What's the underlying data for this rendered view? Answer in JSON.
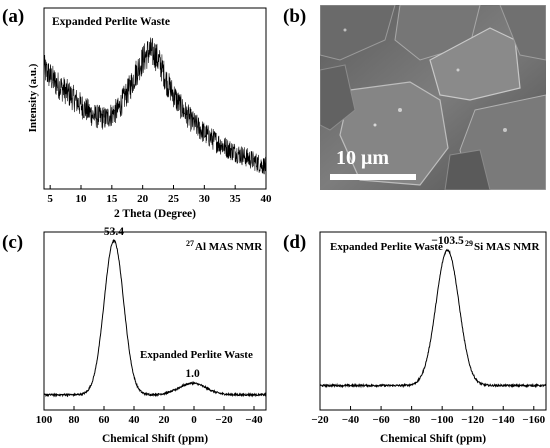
{
  "panels": {
    "a": {
      "label": "(a)"
    },
    "b": {
      "label": "(b)"
    },
    "c": {
      "label": "(c)"
    },
    "d": {
      "label": "(d)"
    }
  },
  "micrograph": {
    "scale_text": "10 μm",
    "description_colors": {
      "background": "#6f6f6f",
      "scale_bar": "#ffffff"
    }
  },
  "chart_data": [
    {
      "id": "a",
      "type": "line",
      "title": "Expanded Perlite Waste",
      "xlabel": "2 Theta (Degree)",
      "ylabel": "Intensity (a.u.)",
      "xlim": [
        4,
        40
      ],
      "xticks": [
        5,
        10,
        15,
        20,
        25,
        30,
        35,
        40
      ],
      "y_ticks_shown": false,
      "series": [
        {
          "x": [
            4,
            6,
            8,
            10,
            12,
            14,
            16,
            18,
            19,
            20,
            21,
            22,
            23,
            24,
            26,
            28,
            30,
            32,
            34,
            36,
            38,
            40
          ],
          "y": [
            0.72,
            0.62,
            0.55,
            0.47,
            0.4,
            0.38,
            0.44,
            0.6,
            0.7,
            0.78,
            0.84,
            0.82,
            0.74,
            0.62,
            0.47,
            0.36,
            0.28,
            0.22,
            0.17,
            0.13,
            0.09,
            0.05
          ],
          "noise": 0.09,
          "color": "#000000"
        }
      ]
    },
    {
      "id": "c",
      "type": "line",
      "title": "",
      "xlabel": "Chemical Shift (ppm)",
      "xlim": [
        100,
        -48
      ],
      "xticks": [
        100,
        80,
        60,
        40,
        20,
        0,
        -20,
        -40
      ],
      "xticklabels": [
        "100",
        "80",
        "60",
        "40",
        "20",
        "0",
        "−20",
        "−40"
      ],
      "y_ticks_shown": false,
      "annotations": [
        {
          "text": "53.4",
          "x": 53.4
        },
        {
          "text": "1.0",
          "x": 1.0
        },
        {
          "text": "Expanded Perlite Waste",
          "x": 12
        },
        {
          "text": "27",
          "kind": "superscript"
        },
        {
          "text": "Al MAS NMR",
          "kind": "nucleus_label"
        }
      ],
      "peaks": [
        {
          "center": 53.4,
          "height": 1.0,
          "width": 6.5
        },
        {
          "center": 1.0,
          "height": 0.075,
          "width": 9
        }
      ],
      "baseline": 0.06,
      "color": "#000000"
    },
    {
      "id": "d",
      "type": "line",
      "title": "",
      "xlabel": "Chemical Shift (ppm)",
      "xlim": [
        -20,
        -168
      ],
      "xticks": [
        -20,
        -40,
        -60,
        -80,
        -100,
        -120,
        -140,
        -160
      ],
      "xticklabels": [
        "−20",
        "−40",
        "−60",
        "−80",
        "−100",
        "−120",
        "−140",
        "−160"
      ],
      "y_ticks_shown": false,
      "annotations": [
        {
          "text": "Expanded Perlite Waste",
          "kind": "sample_label"
        },
        {
          "text": "29",
          "kind": "superscript"
        },
        {
          "text": "Si MAS NMR",
          "kind": "nucleus_label"
        },
        {
          "text": "−103.5",
          "x": -103.5
        }
      ],
      "peaks": [
        {
          "center": -103.5,
          "height": 0.88,
          "width": 7.5
        }
      ],
      "baseline": 0.12,
      "color": "#000000"
    }
  ]
}
